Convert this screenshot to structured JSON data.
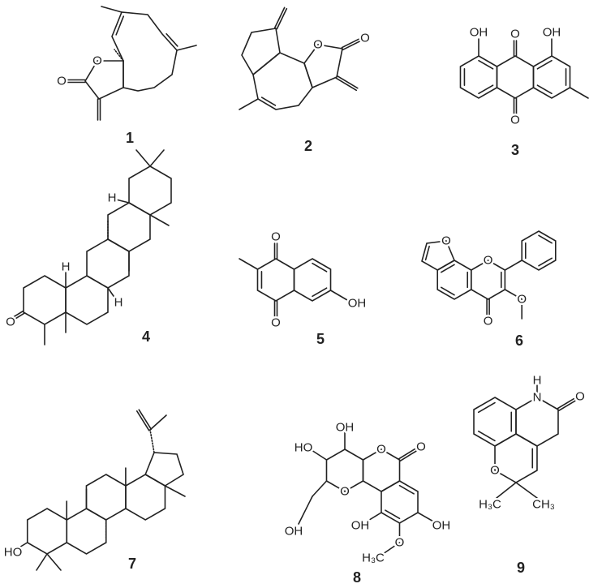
{
  "compounds": [
    {
      "number": "1",
      "labels": [
        "O",
        "O"
      ]
    },
    {
      "number": "2",
      "labels": [
        "O",
        "O"
      ]
    },
    {
      "number": "3",
      "labels": [
        "OH",
        "OH",
        "O",
        "O"
      ]
    },
    {
      "number": "4",
      "labels": [
        "H",
        "H",
        "H",
        "O"
      ]
    },
    {
      "number": "5",
      "labels": [
        "O",
        "O",
        "OH"
      ]
    },
    {
      "number": "6",
      "labels": [
        "O",
        "O",
        "O",
        "O"
      ]
    },
    {
      "number": "7",
      "labels": [
        "HO"
      ]
    },
    {
      "number": "8",
      "labels": [
        "OH",
        "HO",
        "OH",
        "O",
        "O",
        "O",
        "OH",
        "OH",
        "H₃C",
        "O"
      ]
    },
    {
      "number": "9",
      "labels": [
        "H",
        "N",
        "O",
        "O",
        "H₃C",
        "CH₃"
      ]
    }
  ]
}
